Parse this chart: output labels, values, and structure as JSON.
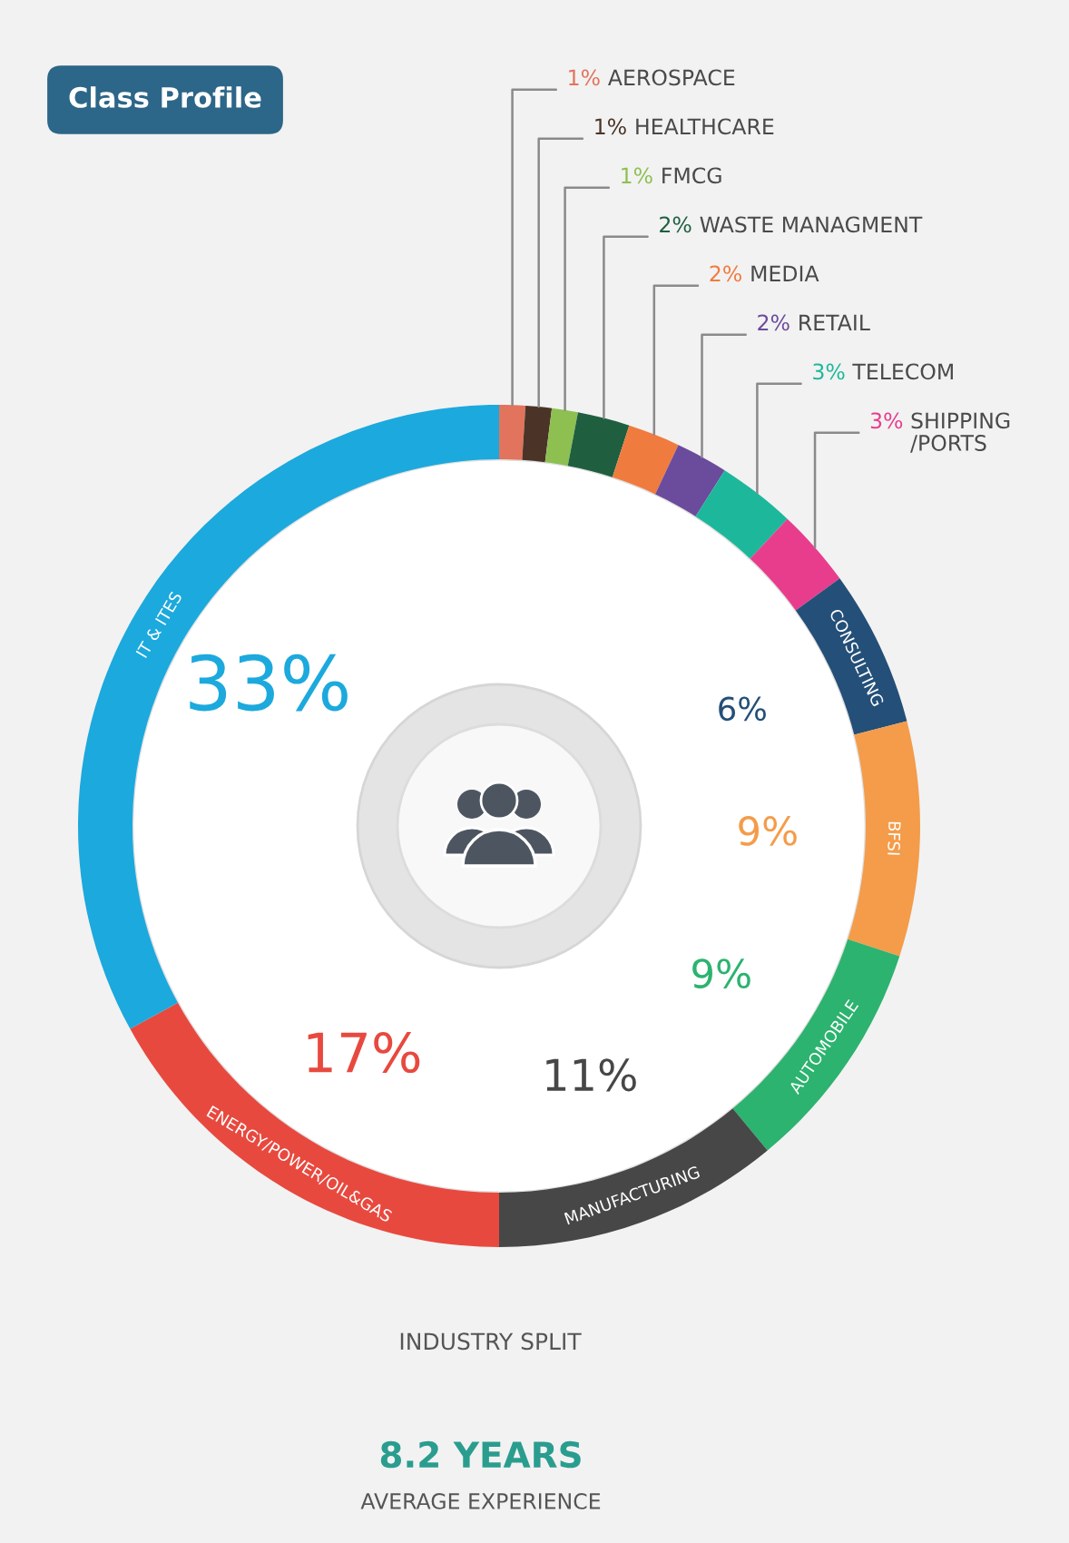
{
  "chart_data": {
    "type": "donut",
    "title": "Class Profile",
    "subtitle": "INDUSTRY SPLIT",
    "annotations": [
      "8.2 YEARS",
      "AVERAGE EXPERIENCE"
    ],
    "categories": [
      "AEROSPACE",
      "HEALTHCARE",
      "FMCG",
      "WASTE MANAGMENT",
      "MEDIA",
      "RETAIL",
      "TELECOM",
      "SHIPPING\n/PORTS",
      "CONSULTING",
      "BFSI",
      "AUTOMOBILE",
      "MANUFACTURING",
      "ENERGY/POWER/OIL&GAS",
      "IT & ITES"
    ],
    "values": [
      1,
      1,
      1,
      2,
      2,
      2,
      3,
      3,
      6,
      9,
      9,
      11,
      17,
      33
    ],
    "colors": [
      "#e2735c",
      "#4b3427",
      "#8dc051",
      "#1f5f40",
      "#f07b3f",
      "#6b4b9b",
      "#1db89b",
      "#e83d8d",
      "#244f78",
      "#f49c4a",
      "#2cb36f",
      "#474747",
      "#e8493f",
      "#1ca9dd"
    ],
    "value_labels": [
      "1%",
      "1%",
      "1%",
      "2%",
      "2%",
      "2%",
      "3%",
      "3%",
      "6%",
      "9%",
      "9%",
      "11%",
      "17%",
      "33%"
    ]
  }
}
